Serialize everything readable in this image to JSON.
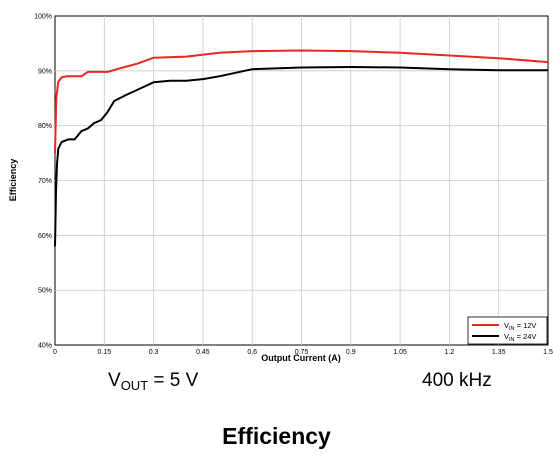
{
  "chart_data": {
    "type": "line",
    "title": "",
    "xlabel": "Output Current (A)",
    "ylabel": "Efficiency",
    "xlim": [
      0,
      1.5
    ],
    "ylim": [
      40,
      100
    ],
    "x_ticks": [
      "0",
      "0.15",
      "0.3",
      "0.45",
      "0.6",
      "0.75",
      "0.9",
      "1.05",
      "1.2",
      "1.35",
      "1.5"
    ],
    "y_ticks": [
      "40%",
      "50%",
      "60%",
      "70%",
      "80%",
      "90%",
      "100%"
    ],
    "grid": true,
    "legend_position": "bottom-right",
    "series": [
      {
        "name_main": "V",
        "name_sub": "IN",
        "name_rest": " = 12V",
        "color": "#e8281e",
        "x": [
          0.0,
          0.004,
          0.01,
          0.02,
          0.035,
          0.05,
          0.08,
          0.1,
          0.13,
          0.16,
          0.2,
          0.25,
          0.3,
          0.4,
          0.5,
          0.6,
          0.75,
          0.9,
          1.05,
          1.2,
          1.35,
          1.5
        ],
        "y": [
          75,
          85,
          88,
          88.8,
          89,
          89,
          89,
          89.8,
          89.8,
          89.8,
          90.5,
          91.3,
          92.4,
          92.6,
          93.3,
          93.6,
          93.7,
          93.6,
          93.3,
          92.8,
          92.3,
          91.6
        ]
      },
      {
        "name_main": "V",
        "name_sub": "IN",
        "name_rest": " = 24V",
        "color": "#000000",
        "x": [
          0.0,
          0.003,
          0.006,
          0.01,
          0.02,
          0.04,
          0.06,
          0.08,
          0.1,
          0.12,
          0.14,
          0.16,
          0.18,
          0.22,
          0.26,
          0.3,
          0.35,
          0.4,
          0.45,
          0.5,
          0.6,
          0.75,
          0.9,
          1.05,
          1.2,
          1.35,
          1.5
        ],
        "y": [
          58,
          68,
          73,
          75.8,
          77,
          77.5,
          77.5,
          79,
          79.5,
          80.5,
          81,
          82.5,
          84.5,
          85.7,
          86.8,
          87.9,
          88.2,
          88.2,
          88.5,
          89,
          90.3,
          90.6,
          90.7,
          90.6,
          90.3,
          90.1,
          90.1
        ]
      }
    ]
  },
  "captions": {
    "vout_main": "V",
    "vout_sub": "OUT",
    "vout_rest": " = 5 V",
    "frequency": "400 kHz",
    "figure_title": "Efficiency"
  }
}
